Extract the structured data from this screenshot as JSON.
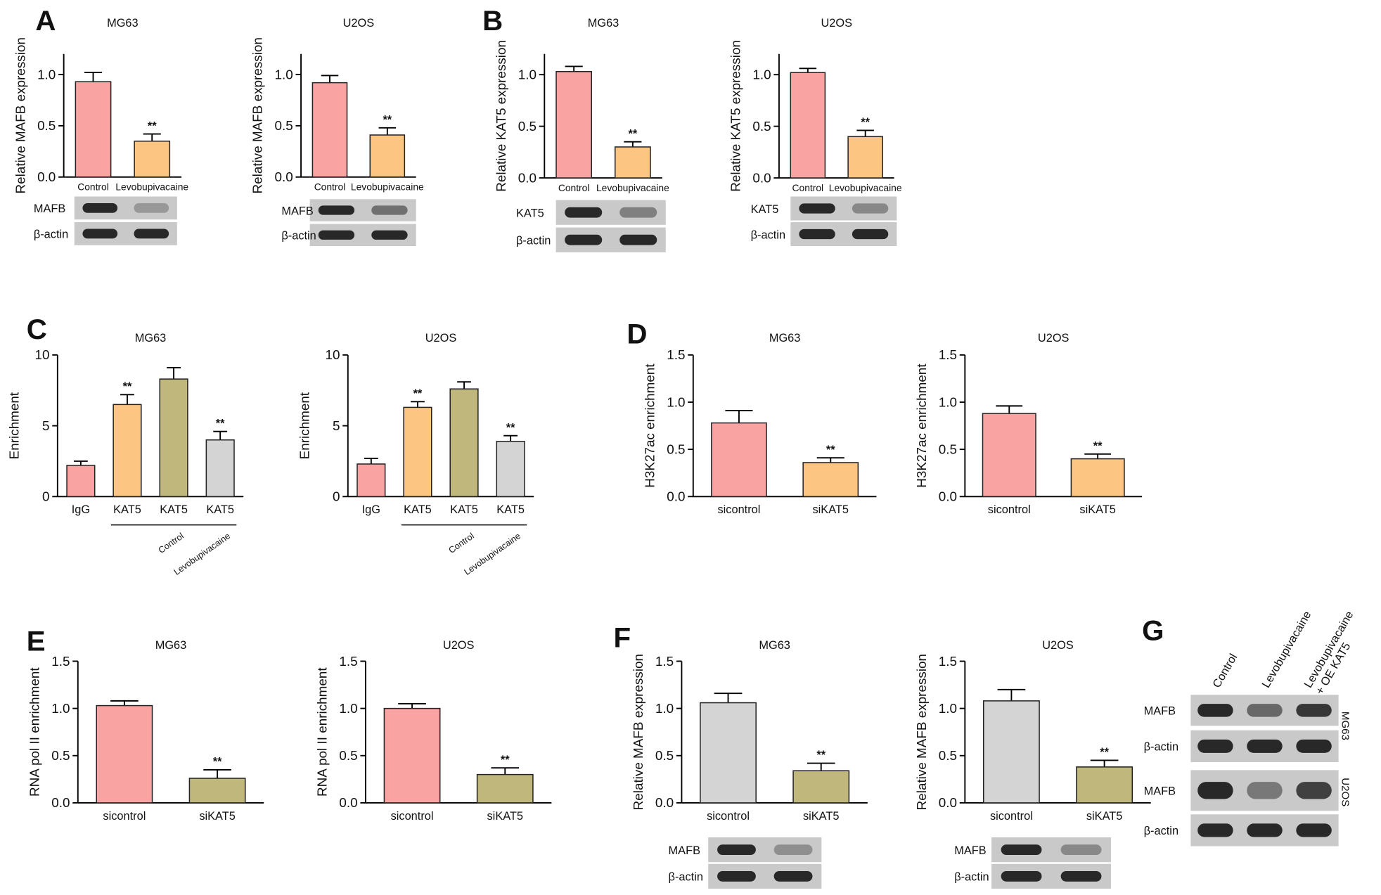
{
  "panels": [
    "A",
    "B",
    "C",
    "D",
    "E",
    "F",
    "G"
  ],
  "chart_data": [
    {
      "type": "bar",
      "title": "MG63",
      "ylabel": "Relative MAFB expression",
      "categories": [
        "Control",
        "Levobupivacaine"
      ],
      "values": [
        0.93,
        0.35
      ],
      "errors": [
        0.09,
        0.07
      ],
      "colors": [
        "#f9a3a3",
        "#fcc582"
      ],
      "significance": [
        null,
        "**"
      ],
      "ylim": [
        0,
        1.2
      ],
      "yticks": [
        {
          "value": 0,
          "label": "0.0"
        },
        0.5,
        {
          "value": 1,
          "label": "1.0"
        }
      ]
    },
    {
      "type": "bar",
      "title": "U2OS",
      "ylabel": "Relative MAFB expression",
      "categories": [
        "Control",
        "Levobupivacaine"
      ],
      "values": [
        0.92,
        0.41
      ],
      "errors": [
        0.07,
        0.07
      ],
      "colors": [
        "#f9a3a3",
        "#fcc582"
      ],
      "significance": [
        null,
        "**"
      ],
      "ylim": [
        0,
        1.2
      ],
      "yticks": [
        {
          "value": 0,
          "label": "0.0"
        },
        0.5,
        {
          "value": 1,
          "label": "1.0"
        }
      ]
    },
    {
      "type": "bar",
      "title": "MG63",
      "ylabel": "Relative KAT5 expression",
      "categories": [
        "Control",
        "Levobupivacaine"
      ],
      "values": [
        1.03,
        0.3
      ],
      "errors": [
        0.05,
        0.05
      ],
      "colors": [
        "#f9a3a3",
        "#fcc582"
      ],
      "significance": [
        null,
        "**"
      ],
      "ylim": [
        0,
        1.2
      ],
      "yticks": [
        {
          "value": 0,
          "label": "0.0"
        },
        0.5,
        {
          "value": 1,
          "label": "1.0"
        }
      ]
    },
    {
      "type": "bar",
      "title": "U2OS",
      "ylabel": "Relative KAT5 expression",
      "categories": [
        "Control",
        "Levobupivacaine"
      ],
      "values": [
        1.02,
        0.4
      ],
      "errors": [
        0.04,
        0.06
      ],
      "colors": [
        "#f9a3a3",
        "#fcc582"
      ],
      "significance": [
        null,
        "**"
      ],
      "ylim": [
        0,
        1.2
      ],
      "yticks": [
        {
          "value": 0,
          "label": "0.0"
        },
        0.5,
        {
          "value": 1,
          "label": "1.0"
        }
      ]
    },
    {
      "type": "bar",
      "title": "MG63",
      "ylabel": "Enrichment",
      "categories": [
        "IgG",
        "KAT5",
        "KAT5",
        "KAT5"
      ],
      "values": [
        2.2,
        6.5,
        8.3,
        4.0
      ],
      "errors": [
        0.3,
        0.7,
        0.8,
        0.6
      ],
      "colors": [
        "#f9a3a3",
        "#fcc582",
        "#c0b77c",
        "#d4d4d4"
      ],
      "significance": [
        null,
        "**",
        null,
        "**"
      ],
      "groups": [
        "Control",
        "Levobupivacaine"
      ],
      "ylim": [
        0,
        10
      ],
      "yticks": [
        0,
        5,
        10
      ]
    },
    {
      "type": "bar",
      "title": "U2OS",
      "ylabel": "Enrichment",
      "categories": [
        "IgG",
        "KAT5",
        "KAT5",
        "KAT5"
      ],
      "values": [
        2.3,
        6.3,
        7.6,
        3.9
      ],
      "errors": [
        0.4,
        0.4,
        0.5,
        0.4
      ],
      "colors": [
        "#f9a3a3",
        "#fcc582",
        "#c0b77c",
        "#d4d4d4"
      ],
      "significance": [
        null,
        "**",
        null,
        "**"
      ],
      "groups": [
        "Control",
        "Levobupivacaine"
      ],
      "ylim": [
        0,
        10
      ],
      "yticks": [
        0,
        5,
        10
      ]
    },
    {
      "type": "bar",
      "title": "MG63",
      "ylabel": "H3K27ac enrichment",
      "categories": [
        "sicontrol",
        "siKAT5"
      ],
      "values": [
        0.78,
        0.36
      ],
      "errors": [
        0.13,
        0.05
      ],
      "colors": [
        "#f9a3a3",
        "#fcc582"
      ],
      "significance": [
        null,
        "**"
      ],
      "ylim": [
        0,
        1.5
      ],
      "yticks": [
        {
          "value": 0,
          "label": "0.0"
        },
        0.5,
        {
          "value": 1,
          "label": "1.0"
        },
        1.5
      ]
    },
    {
      "type": "bar",
      "title": "U2OS",
      "ylabel": "H3K27ac enrichment",
      "categories": [
        "sicontrol",
        "siKAT5"
      ],
      "values": [
        0.88,
        0.4
      ],
      "errors": [
        0.08,
        0.05
      ],
      "colors": [
        "#f9a3a3",
        "#fcc582"
      ],
      "significance": [
        null,
        "**"
      ],
      "ylim": [
        0,
        1.5
      ],
      "yticks": [
        {
          "value": 0,
          "label": "0.0"
        },
        0.5,
        {
          "value": 1,
          "label": "1.0"
        },
        1.5
      ]
    },
    {
      "type": "bar",
      "title": "MG63",
      "ylabel": "RNA pol II enrichment",
      "categories": [
        "sicontrol",
        "siKAT5"
      ],
      "values": [
        1.03,
        0.26
      ],
      "errors": [
        0.05,
        0.09
      ],
      "colors": [
        "#f9a3a3",
        "#c0b77c"
      ],
      "significance": [
        null,
        "**"
      ],
      "ylim": [
        0,
        1.5
      ],
      "yticks": [
        {
          "value": 0,
          "label": "0.0"
        },
        0.5,
        {
          "value": 1,
          "label": "1.0"
        },
        1.5
      ]
    },
    {
      "type": "bar",
      "title": "U2OS",
      "ylabel": "RNA pol II enrichment",
      "categories": [
        "sicontrol",
        "siKAT5"
      ],
      "values": [
        1.0,
        0.3
      ],
      "errors": [
        0.05,
        0.07
      ],
      "colors": [
        "#f9a3a3",
        "#c0b77c"
      ],
      "significance": [
        null,
        "**"
      ],
      "ylim": [
        0,
        1.5
      ],
      "yticks": [
        {
          "value": 0,
          "label": "0.0"
        },
        0.5,
        {
          "value": 1,
          "label": "1.0"
        },
        1.5
      ]
    },
    {
      "type": "bar",
      "title": "MG63",
      "ylabel": "Relative MAFB expression",
      "categories": [
        "sicontrol",
        "siKAT5"
      ],
      "values": [
        1.06,
        0.34
      ],
      "errors": [
        0.1,
        0.08
      ],
      "colors": [
        "#d4d4d4",
        "#c0b77c"
      ],
      "significance": [
        null,
        "**"
      ],
      "ylim": [
        0,
        1.5
      ],
      "yticks": [
        {
          "value": 0,
          "label": "0.0"
        },
        0.5,
        {
          "value": 1,
          "label": "1.0"
        },
        1.5
      ]
    },
    {
      "type": "bar",
      "title": "U2OS",
      "ylabel": "Relative MAFB expression",
      "categories": [
        "sicontrol",
        "siKAT5"
      ],
      "values": [
        1.08,
        0.38
      ],
      "errors": [
        0.12,
        0.07
      ],
      "colors": [
        "#d4d4d4",
        "#c0b77c"
      ],
      "significance": [
        null,
        "**"
      ],
      "ylim": [
        0,
        1.5
      ],
      "yticks": [
        {
          "value": 0,
          "label": "0.0"
        },
        0.5,
        {
          "value": 1,
          "label": "1.0"
        },
        1.5
      ]
    }
  ],
  "blots": [
    {
      "rows": [
        "MAFB",
        "β-actin"
      ]
    },
    {
      "rows": [
        "MAFB",
        "β-actin"
      ]
    },
    {
      "rows": [
        "KAT5",
        "β-actin"
      ]
    },
    {
      "rows": [
        "KAT5",
        "β-actin"
      ]
    },
    {
      "rows": [
        "MAFB",
        "β-actin"
      ]
    },
    {
      "rows": [
        "MAFB",
        "β-actin"
      ]
    }
  ],
  "panel_g": {
    "lanes": [
      [
        "Control"
      ],
      [
        "Levobupivacaine"
      ],
      [
        "Levobupivacaine",
        "+ OE KAT5"
      ]
    ],
    "rows": [
      "MAFB",
      "β-actin",
      "MAFB",
      "β-actin"
    ],
    "cell_lines": [
      "MG63",
      "U2OS"
    ]
  }
}
